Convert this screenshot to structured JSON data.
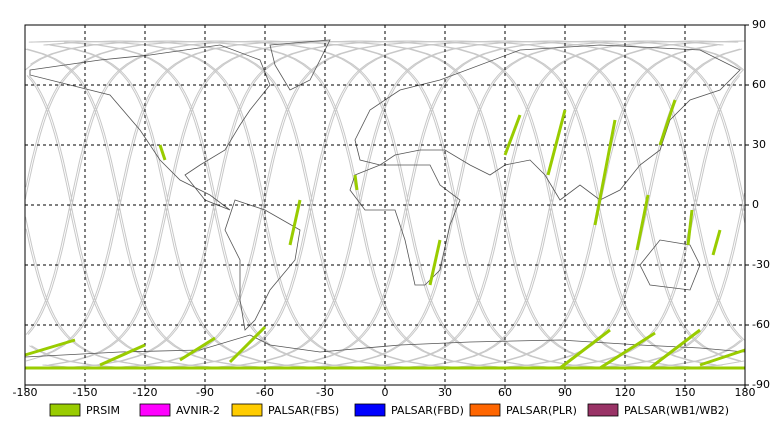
{
  "chart_data": {
    "type": "track-map",
    "xlim": [
      -180,
      180
    ],
    "ylim": [
      -90,
      90
    ],
    "xticks": [
      -180,
      -150,
      -120,
      -90,
      -60,
      -30,
      0,
      30,
      60,
      90,
      120,
      150,
      180
    ],
    "yticks": [
      90,
      60,
      30,
      0,
      -30,
      -60,
      -90
    ],
    "grid": true,
    "series": [
      {
        "name": "PRSIM",
        "color": "#99cc00",
        "segments": [
          [
            -112.5,
            30,
            -110,
            22.5
          ],
          [
            -47.5,
            -20,
            -42.5,
            2.5
          ],
          [
            -15,
            15,
            -14,
            7.5
          ],
          [
            22.5,
            -40,
            27.5,
            -17.5
          ],
          [
            60,
            25,
            67.5,
            45
          ],
          [
            81.5,
            15,
            90,
            47.5
          ],
          [
            105,
            -10,
            115,
            42.5
          ],
          [
            126,
            -22.5,
            131.5,
            5
          ],
          [
            137.5,
            30,
            145,
            52.5
          ],
          [
            151.5,
            -20,
            153.5,
            -2.5
          ],
          [
            164,
            -25,
            167.5,
            -12.5
          ],
          [
            -180,
            -75,
            -155,
            -67.5
          ],
          [
            -142.5,
            -80,
            -120,
            -70
          ],
          [
            -102.5,
            -77.5,
            -85,
            -66.5
          ],
          [
            -77.5,
            -78.5,
            -60,
            -61
          ],
          [
            87.5,
            -81.5,
            112.5,
            -62.5
          ],
          [
            107.5,
            -81.5,
            135,
            -64
          ],
          [
            132.5,
            -81.5,
            157.5,
            -62.5
          ],
          [
            157.5,
            -80,
            180,
            -72.5
          ],
          [
            -180,
            -81.5,
            180,
            -81.5
          ]
        ]
      },
      {
        "name": "AVNIR-2",
        "color": "#ff00ff"
      },
      {
        "name": "PALSAR(FBS)",
        "color": "#ffcc00"
      },
      {
        "name": "PALSAR(FBD)",
        "color": "#0000ff"
      },
      {
        "name": "PALSAR(PLR)",
        "color": "#ff6600"
      },
      {
        "name": "PALSAR(WB1/WB2)",
        "color": "#993366"
      }
    ]
  }
}
